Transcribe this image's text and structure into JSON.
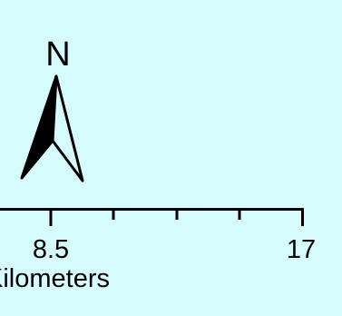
{
  "north_arrow": {
    "label": "N"
  },
  "scale_bar": {
    "tick_values": [
      "8.5",
      "17"
    ],
    "unit_label": "Kilometers",
    "minor_tick_count": 3
  },
  "colors": {
    "background": "#d6fbfd",
    "ink": "#000000"
  }
}
